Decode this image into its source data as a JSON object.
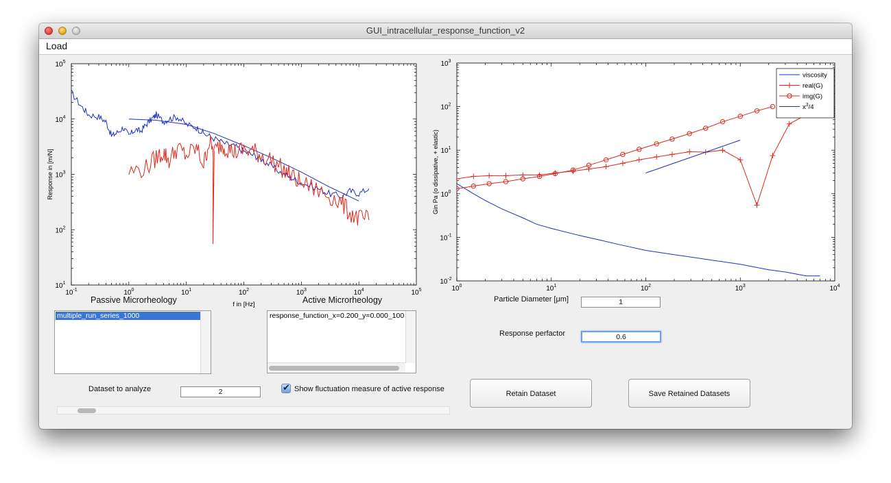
{
  "window": {
    "title": "GUI_intracellular_response_function_v2"
  },
  "menu": {
    "load": "Load"
  },
  "left_panel": {
    "passive_title": "Passive Microrheology",
    "active_title": "Active Microrheology",
    "passive_list": [
      "multiple_run_series_1000"
    ],
    "active_list": [
      "response_function_x=0.200_y=0.000_100"
    ],
    "dataset_label": "Dataset to analyze",
    "dataset_value": "2",
    "checkbox_label": "Show fluctuation measure of active response",
    "checkbox_checked": true,
    "slider_value": 0.05
  },
  "right_panel": {
    "particle_diameter_label": "Particle Diameter [μm]",
    "particle_diameter_value": "1",
    "response_prefactor_label": "Response perfactor",
    "response_prefactor_value": "0.6",
    "retain_button": "Retain Dataset",
    "save_button": "Save Retained Datasets"
  },
  "colors": {
    "blue": "#1f2fc4",
    "red": "#e0281c",
    "selection": "#3875d7"
  },
  "chart_data": [
    {
      "type": "line",
      "xscale": "log",
      "yscale": "log",
      "xlim": [
        0.1,
        100000
      ],
      "ylim": [
        10,
        100000
      ],
      "xlabel": "f in [Hz]",
      "ylabel": "Response in [m/N]",
      "xticks": [
        {
          "base": "10",
          "exp": "-1"
        },
        {
          "base": "10",
          "exp": "0"
        },
        {
          "base": "10",
          "exp": "1"
        },
        {
          "base": "10",
          "exp": "2"
        },
        {
          "base": "10",
          "exp": "3"
        },
        {
          "base": "10",
          "exp": "4"
        },
        {
          "base": "10",
          "exp": "5"
        }
      ],
      "yticks": [
        {
          "base": "10",
          "exp": "1"
        },
        {
          "base": "10",
          "exp": "2"
        },
        {
          "base": "10",
          "exp": "3"
        },
        {
          "base": "10",
          "exp": "4"
        },
        {
          "base": "10",
          "exp": "5"
        }
      ],
      "series": [
        {
          "color": "#1f2fc4",
          "style": "noisy",
          "x": [
            0.1,
            0.15,
            0.2,
            0.3,
            0.4,
            0.5,
            0.6,
            0.8,
            1.0,
            1.3,
            1.6,
            2,
            2.5,
            3,
            4,
            5,
            7,
            10,
            15,
            20,
            30,
            50,
            70,
            100,
            150,
            200,
            300,
            500,
            700,
            1000,
            2000,
            3000,
            5000,
            7000,
            10000,
            15000
          ],
          "y": [
            30000,
            17000,
            12000,
            11000,
            9000,
            5000,
            5500,
            7000,
            5000,
            6500,
            6000,
            8000,
            10000,
            12000,
            9000,
            10000,
            11000,
            8000,
            7000,
            5500,
            4500,
            3500,
            3200,
            2600,
            2200,
            1900,
            1400,
            1000,
            850,
            700,
            550,
            450,
            400,
            500,
            450,
            550
          ]
        },
        {
          "color": "#1f2fc4",
          "style": "smooth",
          "x": [
            1,
            3,
            10,
            30,
            100,
            300,
            1000,
            3000,
            10000
          ],
          "y": [
            10000,
            9500,
            8000,
            5500,
            3300,
            2000,
            1100,
            600,
            330
          ]
        },
        {
          "color": "#e0281c",
          "style": "noisy",
          "x": [
            1,
            2,
            3,
            4,
            5,
            7,
            10,
            15,
            20,
            25,
            30,
            40,
            50,
            70,
            100,
            150,
            200,
            300,
            500,
            700,
            1000,
            2000,
            3000,
            5000,
            7000,
            10000,
            15000
          ],
          "y": [
            1100,
            1300,
            2000,
            2500,
            1800,
            3000,
            2200,
            3000,
            1500,
            4000,
            2500,
            3500,
            3000,
            2500,
            2800,
            2600,
            2200,
            1800,
            1200,
            900,
            700,
            500,
            420,
            300,
            200,
            160,
            150
          ]
        }
      ]
    },
    {
      "type": "line",
      "xscale": "log",
      "yscale": "log",
      "xlim": [
        1,
        10000
      ],
      "ylim": [
        0.01,
        1000
      ],
      "ylabel": "Gin Pa (o dissipative, + elastic)",
      "xticks": [
        {
          "base": "10",
          "exp": "0"
        },
        {
          "base": "10",
          "exp": "1"
        },
        {
          "base": "10",
          "exp": "2"
        },
        {
          "base": "10",
          "exp": "3"
        },
        {
          "base": "10",
          "exp": "4"
        }
      ],
      "yticks": [
        {
          "base": "10",
          "exp": "-2"
        },
        {
          "base": "10",
          "exp": "-1"
        },
        {
          "base": "10",
          "exp": "0"
        },
        {
          "base": "10",
          "exp": "1"
        },
        {
          "base": "10",
          "exp": "2"
        },
        {
          "base": "10",
          "exp": "3"
        }
      ],
      "legend": {
        "position": "top-right",
        "entries": [
          {
            "label": "viscosity",
            "color": "#1f2fc4",
            "marker": "none"
          },
          {
            "label": "real(G)",
            "color": "#e0281c",
            "marker": "plus"
          },
          {
            "label": "img(G)",
            "color": "#e0281c",
            "marker": "circle"
          },
          {
            "label": "x",
            "sup": "3",
            "suffix": "/4",
            "color": "#1f2fc4",
            "marker": "none"
          }
        ]
      },
      "series": [
        {
          "name": "viscosity",
          "color": "#1f2fc4",
          "marker": "none",
          "x": [
            1,
            1.5,
            2,
            3,
            5,
            7,
            10,
            20,
            30,
            50,
            100,
            200,
            500,
            1000,
            2000,
            3000,
            5000,
            7000
          ],
          "y": [
            1.7,
            1.0,
            0.7,
            0.45,
            0.28,
            0.2,
            0.16,
            0.11,
            0.09,
            0.07,
            0.05,
            0.04,
            0.03,
            0.024,
            0.018,
            0.016,
            0.013,
            0.013
          ]
        },
        {
          "name": "real(G)",
          "color": "#e0281c",
          "marker": "plus",
          "x": [
            1,
            1.5,
            2.2,
            3.3,
            5,
            7.5,
            11,
            17,
            25,
            38,
            57,
            85,
            130,
            190,
            290,
            430,
            650,
            1000,
            1500,
            2200,
            3300,
            5000
          ],
          "y": [
            2.2,
            2.5,
            2.6,
            2.6,
            2.7,
            2.7,
            3.0,
            3.3,
            3.7,
            4.2,
            5.0,
            6.0,
            7.0,
            8.0,
            9.2,
            9.0,
            10,
            6,
            0.55,
            7.5,
            40,
            65
          ]
        },
        {
          "name": "img(G)",
          "color": "#e0281c",
          "marker": "circle",
          "x": [
            1,
            1.5,
            2.2,
            3.3,
            5,
            7.5,
            11,
            17,
            25,
            38,
            57,
            85,
            130,
            190,
            290,
            430,
            650,
            1000,
            1500,
            2200
          ],
          "y": [
            1.3,
            1.5,
            1.7,
            1.9,
            2.2,
            2.5,
            2.9,
            3.5,
            4.5,
            6,
            8,
            10.5,
            14,
            18,
            24,
            32,
            45,
            60,
            80,
            100
          ]
        },
        {
          "name": "x3/4",
          "color": "#1f2fc4",
          "marker": "none",
          "x": [
            100,
            1000
          ],
          "y": [
            3,
            17
          ]
        }
      ]
    }
  ]
}
